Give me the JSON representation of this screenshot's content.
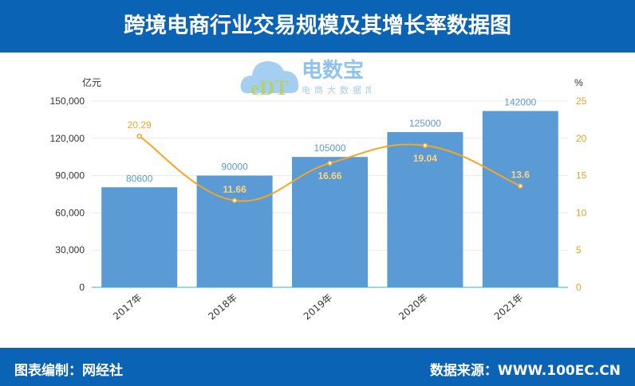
{
  "title": "跨境电商行业交易规模及其增长率数据图",
  "footer": {
    "left": "图表编制：网经社",
    "right": "数据来源：WWW.100EC.CN"
  },
  "watermark": {
    "logo_text": "eDT",
    "name": "电数宝",
    "tagline": "电商大数据库"
  },
  "colors": {
    "bar": "#5b9bd5",
    "line": "#f5a623",
    "bar_label": "#5b9bd5",
    "header": "#0b63b6"
  },
  "chart_data": {
    "type": "bar+line",
    "categories": [
      "2017年",
      "2018年",
      "2019年",
      "2020年",
      "2021年"
    ],
    "series": [
      {
        "type": "bar",
        "axis": "left",
        "values": [
          80600,
          90000,
          105000,
          125000,
          142000
        ]
      },
      {
        "type": "line",
        "axis": "right",
        "smooth": true,
        "values": [
          20.29,
          11.66,
          16.66,
          19.04,
          13.6
        ]
      }
    ],
    "ylabel_left": "亿元",
    "ylabel_right": "%",
    "ylim_left": [
      0,
      150000
    ],
    "yticks_left": [
      "0",
      "30,000",
      "60,000",
      "90,000",
      "120,000",
      "150,000"
    ],
    "ylim_right": [
      0,
      25
    ],
    "yticks_right": [
      "0",
      "5",
      "10",
      "15",
      "20",
      "25"
    ],
    "grid": true
  }
}
